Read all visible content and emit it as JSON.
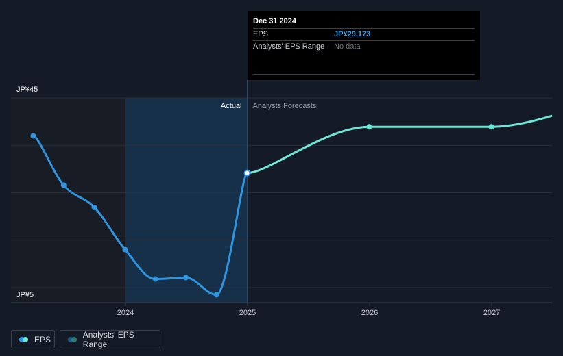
{
  "tooltip": {
    "date": "Dec 31 2024",
    "eps_label": "EPS",
    "eps_value": "JP¥29.173",
    "range_label": "Analysts' EPS Range",
    "range_value": "No data"
  },
  "legend": {
    "eps_label": "EPS",
    "range_label": "Analysts' EPS Range"
  },
  "colors": {
    "background": "#151b26",
    "actual_line": "#2f95e0",
    "forecast_line": "#6ee7d6",
    "highlight_band": "#163049",
    "past_shade": "#171c25"
  },
  "chart_data": {
    "type": "line",
    "title": "",
    "xlabel": "",
    "ylabel": "",
    "y_tick_labels": [
      {
        "value": 45,
        "label": "JP¥45"
      },
      {
        "value": 5,
        "label": "JP¥5"
      }
    ],
    "ylim": [
      5,
      45
    ],
    "x_tick_labels": [
      {
        "value": 2024.0,
        "label": "2024"
      },
      {
        "value": 2025.0,
        "label": "2025"
      },
      {
        "value": 2026.0,
        "label": "2026"
      },
      {
        "value": 2027.0,
        "label": "2027"
      }
    ],
    "xlim": [
      2022.82,
      2027.5
    ],
    "region_labels": {
      "actual": "Actual",
      "forecast": "Analysts Forecasts"
    },
    "grid": "horizontal",
    "series": [
      {
        "name": "EPS",
        "role": "actual",
        "points": [
          {
            "x": "2023-03-31",
            "y": 37.0
          },
          {
            "x": "2023-06-30",
            "y": 26.6
          },
          {
            "x": "2023-09-30",
            "y": 21.9
          },
          {
            "x": "2023-12-31",
            "y": 13.0
          },
          {
            "x": "2024-03-31",
            "y": 6.8
          },
          {
            "x": "2024-06-30",
            "y": 7.1
          },
          {
            "x": "2024-09-30",
            "y": 3.5
          },
          {
            "x": "2024-12-31",
            "y": 29.173
          }
        ]
      },
      {
        "name": "",
        "role": "forecast",
        "points": [
          {
            "x": "2024-12-31",
            "y": 29.173
          },
          {
            "x": "2025-12-31",
            "y": 38.9
          },
          {
            "x": "2026-12-31",
            "y": 38.9
          },
          {
            "x": "2027-12-31",
            "y": 44.6
          }
        ]
      }
    ]
  }
}
